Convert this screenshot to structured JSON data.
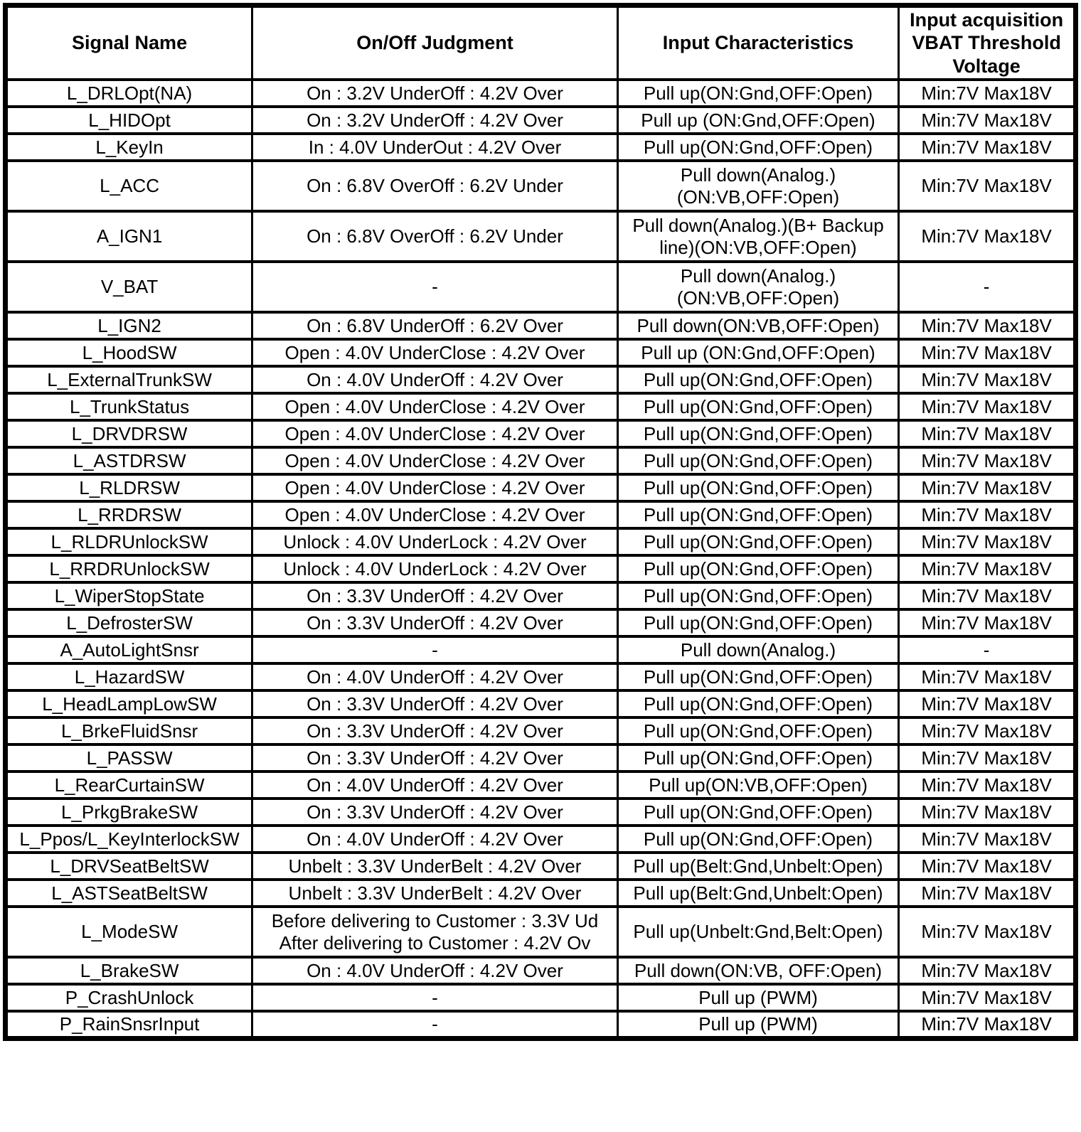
{
  "table": {
    "headers": {
      "signal": "Signal Name",
      "judgment": "On/Off Judgment",
      "input": "Input Characteristics",
      "vbat": "Input acquisition\nVBAT Threshold\nVoltage"
    },
    "rows": [
      {
        "signal": "L_DRLOpt(NA)",
        "judgment": "On : 3.2V UnderOff : 4.2V Over",
        "input": "Pull up(ON:Gnd,OFF:Open)",
        "vbat": "Min:7V Max18V"
      },
      {
        "signal": "L_HIDOpt",
        "judgment": "On : 3.2V UnderOff : 4.2V Over",
        "input": "Pull up (ON:Gnd,OFF:Open)",
        "vbat": "Min:7V Max18V"
      },
      {
        "signal": "L_KeyIn",
        "judgment": "In : 4.0V UnderOut : 4.2V Over",
        "input": "Pull up(ON:Gnd,OFF:Open)",
        "vbat": "Min:7V Max18V"
      },
      {
        "signal": "L_ACC",
        "judgment": "On : 6.8V OverOff : 6.2V Under",
        "input": "Pull down(Analog.)\n(ON:VB,OFF:Open)",
        "vbat": "Min:7V Max18V"
      },
      {
        "signal": "A_IGN1",
        "judgment": "On : 6.8V OverOff : 6.2V Under",
        "input": "Pull down(Analog.)(B+ Backup\nline)(ON:VB,OFF:Open)",
        "vbat": "Min:7V Max18V"
      },
      {
        "signal": "V_BAT",
        "judgment": "-",
        "input": "Pull down(Analog.)\n(ON:VB,OFF:Open)",
        "vbat": "-"
      },
      {
        "signal": "L_IGN2",
        "judgment": "On : 6.8V UnderOff : 6.2V Over",
        "input": "Pull down(ON:VB,OFF:Open)",
        "vbat": "Min:7V Max18V"
      },
      {
        "signal": "L_HoodSW",
        "judgment": "Open : 4.0V UnderClose : 4.2V Over",
        "input": "Pull up (ON:Gnd,OFF:Open)",
        "vbat": "Min:7V Max18V"
      },
      {
        "signal": "L_ExternalTrunkSW",
        "judgment": "On : 4.0V UnderOff : 4.2V Over",
        "input": "Pull up(ON:Gnd,OFF:Open)",
        "vbat": "Min:7V Max18V"
      },
      {
        "signal": "L_TrunkStatus",
        "judgment": "Open : 4.0V UnderClose : 4.2V Over",
        "input": "Pull up(ON:Gnd,OFF:Open)",
        "vbat": "Min:7V Max18V"
      },
      {
        "signal": "L_DRVDRSW",
        "judgment": "Open : 4.0V UnderClose : 4.2V Over",
        "input": "Pull up(ON:Gnd,OFF:Open)",
        "vbat": "Min:7V Max18V"
      },
      {
        "signal": "L_ASTDRSW",
        "judgment": "Open : 4.0V UnderClose : 4.2V Over",
        "input": "Pull up(ON:Gnd,OFF:Open)",
        "vbat": "Min:7V Max18V"
      },
      {
        "signal": "L_RLDRSW",
        "judgment": "Open : 4.0V UnderClose : 4.2V Over",
        "input": "Pull up(ON:Gnd,OFF:Open)",
        "vbat": "Min:7V Max18V"
      },
      {
        "signal": "L_RRDRSW",
        "judgment": "Open : 4.0V UnderClose : 4.2V Over",
        "input": "Pull up(ON:Gnd,OFF:Open)",
        "vbat": "Min:7V Max18V"
      },
      {
        "signal": "L_RLDRUnlockSW",
        "judgment": "Unlock : 4.0V UnderLock : 4.2V Over",
        "input": "Pull up(ON:Gnd,OFF:Open)",
        "vbat": "Min:7V Max18V"
      },
      {
        "signal": "L_RRDRUnlockSW",
        "judgment": "Unlock : 4.0V UnderLock : 4.2V Over",
        "input": "Pull up(ON:Gnd,OFF:Open)",
        "vbat": "Min:7V Max18V"
      },
      {
        "signal": "L_WiperStopState",
        "judgment": "On : 3.3V UnderOff : 4.2V Over",
        "input": "Pull up(ON:Gnd,OFF:Open)",
        "vbat": "Min:7V Max18V"
      },
      {
        "signal": "L_DefrosterSW",
        "judgment": "On : 3.3V UnderOff : 4.2V Over",
        "input": "Pull up(ON:Gnd,OFF:Open)",
        "vbat": "Min:7V Max18V"
      },
      {
        "signal": "A_AutoLightSnsr",
        "judgment": "-",
        "input": "Pull down(Analog.)",
        "vbat": "-"
      },
      {
        "signal": "L_HazardSW",
        "judgment": "On : 4.0V UnderOff : 4.2V Over",
        "input": "Pull up(ON:Gnd,OFF:Open)",
        "vbat": "Min:7V Max18V"
      },
      {
        "signal": "L_HeadLampLowSW",
        "judgment": "On : 3.3V UnderOff : 4.2V Over",
        "input": "Pull up(ON:Gnd,OFF:Open)",
        "vbat": "Min:7V Max18V"
      },
      {
        "signal": "L_BrkeFluidSnsr",
        "judgment": "On : 3.3V UnderOff : 4.2V Over",
        "input": "Pull up(ON:Gnd,OFF:Open)",
        "vbat": "Min:7V Max18V"
      },
      {
        "signal": "L_PASSW",
        "judgment": "On : 3.3V UnderOff : 4.2V Over",
        "input": "Pull up(ON:Gnd,OFF:Open)",
        "vbat": "Min:7V Max18V"
      },
      {
        "signal": "L_RearCurtainSW",
        "judgment": "On : 4.0V UnderOff : 4.2V Over",
        "input": "Pull up(ON:VB,OFF:Open)",
        "vbat": "Min:7V Max18V"
      },
      {
        "signal": "L_PrkgBrakeSW",
        "judgment": "On : 3.3V UnderOff : 4.2V Over",
        "input": "Pull up(ON:Gnd,OFF:Open)",
        "vbat": "Min:7V Max18V"
      },
      {
        "signal": "L_Ppos/L_KeyInterlockSW",
        "judgment": "On : 4.0V UnderOff : 4.2V Over",
        "input": "Pull up(ON:Gnd,OFF:Open)",
        "vbat": "Min:7V Max18V"
      },
      {
        "signal": "L_DRVSeatBeltSW",
        "judgment": "Unbelt : 3.3V UnderBelt : 4.2V Over",
        "input": "Pull up(Belt:Gnd,Unbelt:Open)",
        "vbat": "Min:7V Max18V"
      },
      {
        "signal": "L_ASTSeatBeltSW",
        "judgment": "Unbelt : 3.3V UnderBelt : 4.2V Over",
        "input": "Pull up(Belt:Gnd,Unbelt:Open)",
        "vbat": "Min:7V Max18V"
      },
      {
        "signal": "L_ModeSW",
        "judgment": "Before delivering to Customer : 3.3V Ud\nAfter delivering to Customer : 4.2V Ov",
        "input": "Pull up(Unbelt:Gnd,Belt:Open)",
        "vbat": "Min:7V Max18V"
      },
      {
        "signal": "L_BrakeSW",
        "judgment": "On : 4.0V UnderOff : 4.2V Over",
        "input": "Pull down(ON:VB, OFF:Open)",
        "vbat": "Min:7V Max18V"
      },
      {
        "signal": "P_CrashUnlock",
        "judgment": "-",
        "input": "Pull up (PWM)",
        "vbat": "Min:7V Max18V"
      },
      {
        "signal": "P_RainSnsrInput",
        "judgment": "-",
        "input": "Pull up (PWM)",
        "vbat": "Min:7V Max18V"
      }
    ]
  }
}
